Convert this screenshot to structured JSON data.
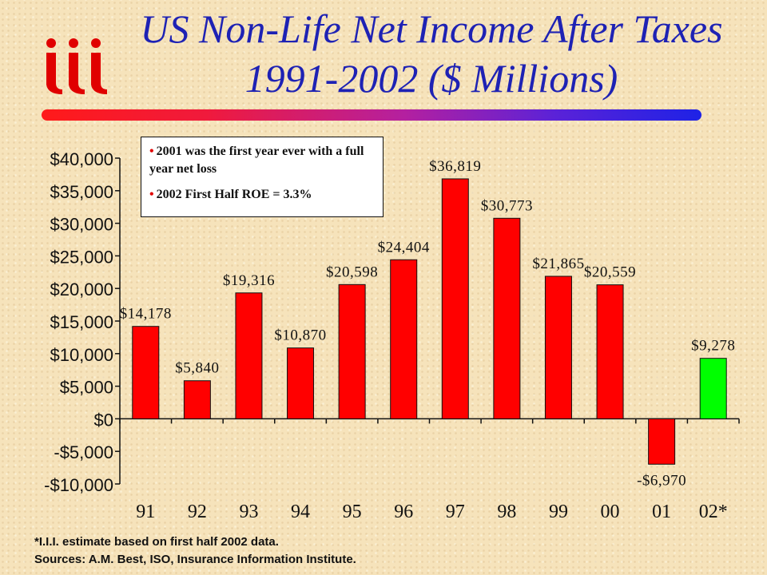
{
  "header": {
    "title_line1": "US Non-Life Net Income After Taxes",
    "title_line2": "1991-2002 ($ Millions)",
    "logo_text": "iii"
  },
  "callout": {
    "bullet1": "2001 was the first year ever with a full year net loss",
    "bullet2": "2002 First Half ROE = 3.3%"
  },
  "footnotes": {
    "note": "*I.I.I. estimate based on first half 2002 data.",
    "sources": "Sources: A.M. Best, ISO, Insurance Information Institute."
  },
  "colors": {
    "bar": "#ff0000",
    "estimate_bar": "#00ff00",
    "title": "#1e22b4"
  },
  "chart_data": {
    "type": "bar",
    "title": "US Non-Life Net Income After Taxes 1991-2002 ($ Millions)",
    "xlabel": "",
    "ylabel": "",
    "ylim": [
      -10000,
      40000
    ],
    "yticks": [
      40000,
      35000,
      30000,
      25000,
      20000,
      15000,
      10000,
      5000,
      0,
      -5000,
      -10000
    ],
    "ytick_labels": [
      "$40,000",
      "$35,000",
      "$30,000",
      "$25,000",
      "$20,000",
      "$15,000",
      "$10,000",
      "$5,000",
      "$0",
      "-$5,000",
      "-$10,000"
    ],
    "categories": [
      "91",
      "92",
      "93",
      "94",
      "95",
      "96",
      "97",
      "98",
      "99",
      "00",
      "01",
      "02*"
    ],
    "values": [
      14178,
      5840,
      19316,
      10870,
      20598,
      24404,
      36819,
      30773,
      21865,
      20559,
      -6970,
      9278
    ],
    "value_labels": [
      "$14,178",
      "$5,840",
      "$19,316",
      "$10,870",
      "$20,598",
      "$24,404",
      "$36,819",
      "$30,773",
      "$21,865",
      "$20,559",
      "-$6,970",
      "$9,278"
    ],
    "highlight_index": 11,
    "grid": false,
    "legend": "none"
  }
}
